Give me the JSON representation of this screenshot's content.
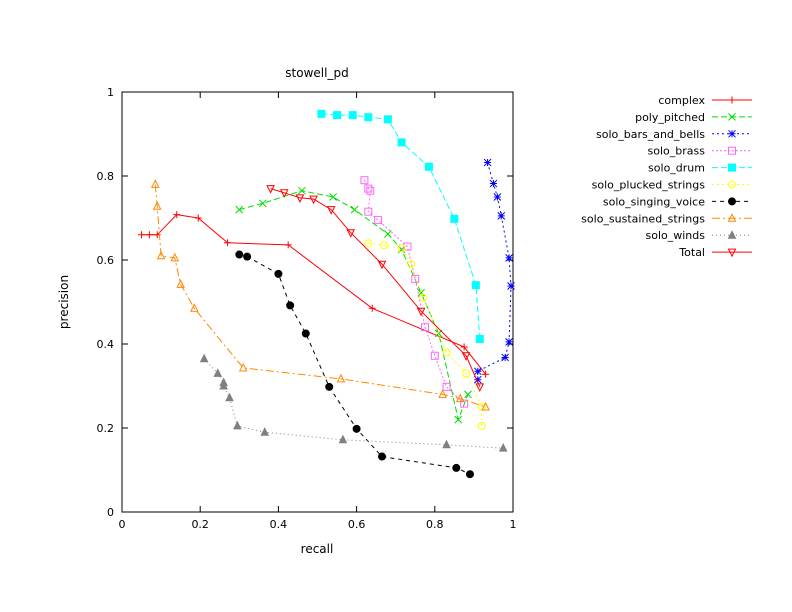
{
  "chart_data": {
    "type": "line",
    "title": "stowell_pd",
    "xlabel": "recall",
    "ylabel": "precision",
    "xlim": [
      0,
      1
    ],
    "ylim": [
      0,
      1
    ],
    "xticks": [
      "0",
      "0.2",
      "0.4",
      "0.6",
      "0.8",
      "1"
    ],
    "yticks": [
      "0",
      "0.2",
      "0.4",
      "0.6",
      "0.8",
      "1"
    ],
    "grid": false,
    "legend_position": "right",
    "series": [
      {
        "name": "complex",
        "color": "#ff0000",
        "marker": "plus",
        "dash": "",
        "points": [
          [
            0.05,
            0.66
          ],
          [
            0.07,
            0.66
          ],
          [
            0.09,
            0.66
          ],
          [
            0.14,
            0.708
          ],
          [
            0.195,
            0.7
          ],
          [
            0.27,
            0.641
          ],
          [
            0.425,
            0.636
          ],
          [
            0.64,
            0.485
          ],
          [
            0.875,
            0.393
          ],
          [
            0.93,
            0.328
          ]
        ]
      },
      {
        "name": "poly_pitched",
        "color": "#00dd00",
        "marker": "x",
        "dash": "6,3",
        "points": [
          [
            0.3,
            0.72
          ],
          [
            0.36,
            0.735
          ],
          [
            0.46,
            0.765
          ],
          [
            0.54,
            0.75
          ],
          [
            0.595,
            0.72
          ],
          [
            0.68,
            0.662
          ],
          [
            0.715,
            0.625
          ],
          [
            0.765,
            0.522
          ],
          [
            0.81,
            0.425
          ],
          [
            0.86,
            0.22
          ],
          [
            0.885,
            0.28
          ]
        ]
      },
      {
        "name": "solo_bars_and_bells",
        "color": "#0000ff",
        "marker": "star",
        "dash": "2,3",
        "points": [
          [
            0.935,
            0.832
          ],
          [
            0.95,
            0.782
          ],
          [
            0.96,
            0.75
          ],
          [
            0.97,
            0.705
          ],
          [
            0.99,
            0.605
          ],
          [
            0.995,
            0.538
          ],
          [
            0.99,
            0.405
          ],
          [
            0.98,
            0.368
          ],
          [
            0.91,
            0.335
          ],
          [
            0.91,
            0.315
          ]
        ]
      },
      {
        "name": "solo_brass",
        "color": "#ff66ff",
        "marker": "square-open",
        "dash": "2,2",
        "points": [
          [
            0.62,
            0.79
          ],
          [
            0.63,
            0.77
          ],
          [
            0.635,
            0.765
          ],
          [
            0.63,
            0.715
          ],
          [
            0.655,
            0.695
          ],
          [
            0.73,
            0.632
          ],
          [
            0.75,
            0.555
          ],
          [
            0.775,
            0.44
          ],
          [
            0.8,
            0.372
          ],
          [
            0.83,
            0.298
          ],
          [
            0.875,
            0.258
          ]
        ]
      },
      {
        "name": "solo_drum",
        "color": "#00ffff",
        "marker": "square",
        "dash": "6,3",
        "points": [
          [
            0.51,
            0.948
          ],
          [
            0.55,
            0.945
          ],
          [
            0.59,
            0.945
          ],
          [
            0.63,
            0.94
          ],
          [
            0.68,
            0.935
          ],
          [
            0.715,
            0.88
          ],
          [
            0.785,
            0.822
          ],
          [
            0.85,
            0.698
          ],
          [
            0.905,
            0.54
          ],
          [
            0.915,
            0.412
          ]
        ]
      },
      {
        "name": "solo_plucked_strings",
        "color": "#ffff00",
        "marker": "circle-open",
        "dash": "2,3",
        "points": [
          [
            0.63,
            0.64
          ],
          [
            0.67,
            0.635
          ],
          [
            0.715,
            0.628
          ],
          [
            0.74,
            0.59
          ],
          [
            0.77,
            0.51
          ],
          [
            0.83,
            0.38
          ],
          [
            0.88,
            0.33
          ],
          [
            0.92,
            0.25
          ],
          [
            0.92,
            0.205
          ]
        ]
      },
      {
        "name": "solo_singing_voice",
        "color": "#000000",
        "marker": "circle",
        "dash": "4,4",
        "points": [
          [
            0.3,
            0.613
          ],
          [
            0.32,
            0.608
          ],
          [
            0.4,
            0.567
          ],
          [
            0.43,
            0.492
          ],
          [
            0.47,
            0.425
          ],
          [
            0.53,
            0.298
          ],
          [
            0.6,
            0.198
          ],
          [
            0.665,
            0.132
          ],
          [
            0.855,
            0.105
          ],
          [
            0.89,
            0.09
          ]
        ]
      },
      {
        "name": "solo_sustained_strings",
        "color": "#ff8800",
        "marker": "triangle-open",
        "dash": "8,3,2,3",
        "points": [
          [
            0.085,
            0.78
          ],
          [
            0.09,
            0.728
          ],
          [
            0.1,
            0.61
          ],
          [
            0.135,
            0.605
          ],
          [
            0.15,
            0.542
          ],
          [
            0.185,
            0.485
          ],
          [
            0.31,
            0.343
          ],
          [
            0.56,
            0.317
          ],
          [
            0.82,
            0.28
          ],
          [
            0.865,
            0.27
          ],
          [
            0.93,
            0.25
          ]
        ]
      },
      {
        "name": "solo_winds",
        "color": "#808080",
        "marker": "triangle",
        "dash": "1,3",
        "points": [
          [
            0.21,
            0.365
          ],
          [
            0.245,
            0.33
          ],
          [
            0.26,
            0.308
          ],
          [
            0.26,
            0.3
          ],
          [
            0.275,
            0.272
          ],
          [
            0.295,
            0.205
          ],
          [
            0.365,
            0.19
          ],
          [
            0.565,
            0.172
          ],
          [
            0.83,
            0.16
          ],
          [
            0.975,
            0.152
          ]
        ]
      },
      {
        "name": "Total",
        "color": "#ff0000",
        "marker": "triangle-down-open",
        "dash": "",
        "points": [
          [
            0.38,
            0.77
          ],
          [
            0.415,
            0.76
          ],
          [
            0.455,
            0.748
          ],
          [
            0.49,
            0.745
          ],
          [
            0.535,
            0.72
          ],
          [
            0.585,
            0.665
          ],
          [
            0.665,
            0.59
          ],
          [
            0.765,
            0.478
          ],
          [
            0.88,
            0.372
          ],
          [
            0.915,
            0.298
          ]
        ]
      }
    ]
  }
}
